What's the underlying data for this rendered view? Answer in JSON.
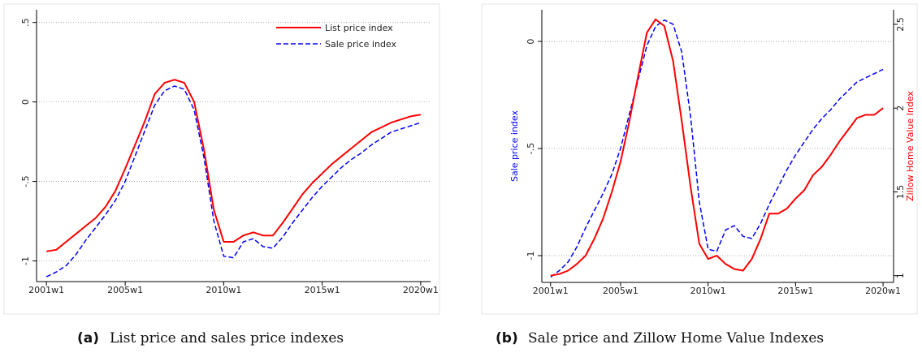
{
  "chart_data": [
    {
      "type": "line",
      "caption_label": "(a)",
      "caption": "List price and sales price indexes",
      "x": [
        2001,
        2001.5,
        2002,
        2002.5,
        2003,
        2003.5,
        2004,
        2004.5,
        2005,
        2005.5,
        2006,
        2006.5,
        2007,
        2007.5,
        2008,
        2008.5,
        2009,
        2009.5,
        2010,
        2010.5,
        2011,
        2011.5,
        2012,
        2012.5,
        2013,
        2013.5,
        2014,
        2014.5,
        2015,
        2015.5,
        2016,
        2016.5,
        2017,
        2017.5,
        2018,
        2018.5,
        2019,
        2019.5,
        2020
      ],
      "series": [
        {
          "name": "List price index",
          "color": "#ff0000",
          "style": "solid",
          "values": [
            -0.94,
            -0.93,
            -0.88,
            -0.83,
            -0.78,
            -0.73,
            -0.66,
            -0.56,
            -0.42,
            -0.27,
            -0.12,
            0.05,
            0.12,
            0.14,
            0.12,
            0.0,
            -0.3,
            -0.68,
            -0.88,
            -0.88,
            -0.84,
            -0.82,
            -0.84,
            -0.84,
            -0.76,
            -0.67,
            -0.58,
            -0.51,
            -0.45,
            -0.39,
            -0.34,
            -0.29,
            -0.24,
            -0.19,
            -0.16,
            -0.13,
            -0.11,
            -0.09,
            -0.08
          ]
        },
        {
          "name": "Sale price index",
          "color": "#0000ff",
          "style": "dashed",
          "values": [
            -1.1,
            -1.07,
            -1.03,
            -0.96,
            -0.87,
            -0.79,
            -0.71,
            -0.62,
            -0.5,
            -0.34,
            -0.18,
            -0.02,
            0.07,
            0.1,
            0.08,
            -0.05,
            -0.35,
            -0.75,
            -0.97,
            -0.98,
            -0.88,
            -0.86,
            -0.91,
            -0.92,
            -0.85,
            -0.76,
            -0.68,
            -0.6,
            -0.53,
            -0.47,
            -0.41,
            -0.36,
            -0.32,
            -0.27,
            -0.23,
            -0.19,
            -0.17,
            -0.15,
            -0.13
          ]
        }
      ],
      "xlim": [
        2000.5,
        2020.5
      ],
      "xticks": [
        {
          "value": 2001,
          "label": "2001w1"
        },
        {
          "value": 2005,
          "label": "2005w1"
        },
        {
          "value": 2010,
          "label": "2010w1"
        },
        {
          "value": 2015,
          "label": "2015w1"
        },
        {
          "value": 2020,
          "label": "2020w1"
        }
      ],
      "ylim": [
        -1.13,
        0.58
      ],
      "yticks": [
        {
          "value": -1,
          "label": "-1"
        },
        {
          "value": -0.5,
          "label": "-.5"
        },
        0,
        {
          "value": 0.5,
          "label": ".5"
        }
      ],
      "grid": true,
      "legend": "top-right"
    },
    {
      "type": "line",
      "caption_label": "(b)",
      "caption": "Sale price and Zillow Home Value Indexes",
      "ylabel": "Sale price index",
      "y2label": "Zillow Home Value Index",
      "x": [
        2001,
        2001.5,
        2002,
        2002.5,
        2003,
        2003.5,
        2004,
        2004.5,
        2005,
        2005.5,
        2006,
        2006.5,
        2007,
        2007.5,
        2008,
        2008.5,
        2009,
        2009.5,
        2010,
        2010.5,
        2011,
        2011.5,
        2012,
        2012.5,
        2013,
        2013.5,
        2014,
        2014.5,
        2015,
        2015.5,
        2016,
        2016.5,
        2017,
        2017.5,
        2018,
        2018.5,
        2019,
        2019.5,
        2020
      ],
      "series": [
        {
          "name": "Sale price index",
          "color": "#0000ff",
          "style": "dashed",
          "values": [
            -1.1,
            -1.07,
            -1.03,
            -0.96,
            -0.87,
            -0.79,
            -0.71,
            -0.62,
            -0.5,
            -0.34,
            -0.18,
            -0.02,
            0.07,
            0.1,
            0.08,
            -0.05,
            -0.35,
            -0.75,
            -0.97,
            -0.98,
            -0.88,
            -0.86,
            -0.91,
            -0.92,
            -0.85,
            -0.76,
            -0.68,
            -0.6,
            -0.53,
            -0.47,
            -0.41,
            -0.36,
            -0.32,
            -0.27,
            -0.23,
            -0.19,
            -0.17,
            -0.15,
            -0.13
          ]
        },
        {
          "name": "Zillow Home Value Index",
          "color": "#ff0000",
          "style": "solid",
          "axis": "y2",
          "values": [
            1.0,
            1.01,
            1.03,
            1.07,
            1.12,
            1.22,
            1.34,
            1.5,
            1.68,
            1.92,
            2.19,
            2.45,
            2.53,
            2.49,
            2.28,
            1.92,
            1.53,
            1.19,
            1.1,
            1.12,
            1.07,
            1.04,
            1.03,
            1.1,
            1.22,
            1.37,
            1.37,
            1.4,
            1.46,
            1.51,
            1.6,
            1.65,
            1.72,
            1.8,
            1.87,
            1.94,
            1.96,
            1.96,
            2.0
          ]
        }
      ],
      "xlim": [
        2000.5,
        2020.6
      ],
      "xticks": [
        {
          "value": 2001,
          "label": "2001w1"
        },
        {
          "value": 2005,
          "label": "2005w1"
        },
        {
          "value": 2010,
          "label": "2010w1"
        },
        {
          "value": 2015,
          "label": "2015w1"
        },
        {
          "value": 2020,
          "label": "2020w1"
        }
      ],
      "ylim": [
        -1.125,
        0.148
      ],
      "yticks": [
        {
          "value": -1,
          "label": "-1"
        },
        {
          "value": -0.5,
          "label": "-.5"
        },
        0
      ],
      "y2lim": [
        0.96,
        2.587
      ],
      "y2ticks": [
        1,
        1.5,
        2,
        2.5
      ],
      "grid": true
    }
  ]
}
